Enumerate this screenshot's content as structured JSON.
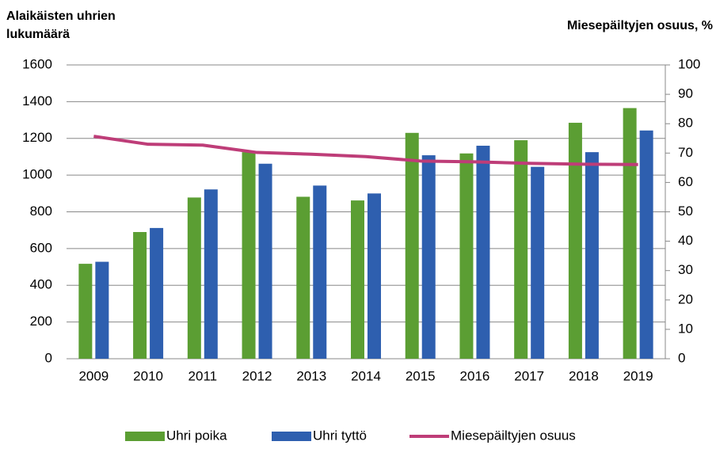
{
  "chart_data": {
    "type": "bar",
    "y_label": [
      "Alaikäisten uhrien",
      "lukumäärä"
    ],
    "y2_label": "Miesepäiltyjen osuus, %",
    "categories": [
      "2009",
      "2010",
      "2011",
      "2012",
      "2013",
      "2014",
      "2015",
      "2016",
      "2017",
      "2018",
      "2019"
    ],
    "series": [
      {
        "name": "Uhri poika",
        "color": "#5b9e33",
        "values": [
          517,
          690,
          878,
          1125,
          882,
          862,
          1230,
          1118,
          1190,
          1285,
          1365
        ]
      },
      {
        "name": "Uhri tyttö",
        "color": "#2e5faf",
        "values": [
          528,
          712,
          922,
          1062,
          943,
          900,
          1108,
          1160,
          1045,
          1125,
          1243
        ]
      },
      {
        "name": "Miesepäiltyjen osuus",
        "type": "line",
        "axis": "y2",
        "color": "#be3d78",
        "values": [
          75.7,
          73,
          72.7,
          70.2,
          69.6,
          68.8,
          67.3,
          67,
          66.5,
          66.2,
          66.1
        ]
      }
    ],
    "ylim": [
      0,
      1600
    ],
    "yticks": [
      0,
      200,
      400,
      600,
      800,
      1000,
      1200,
      1400,
      1600
    ],
    "y2lim": [
      0,
      100
    ],
    "y2ticks": [
      0,
      10,
      20,
      30,
      40,
      50,
      60,
      70,
      80,
      90,
      100
    ],
    "grid": true,
    "legend": "bottom"
  }
}
